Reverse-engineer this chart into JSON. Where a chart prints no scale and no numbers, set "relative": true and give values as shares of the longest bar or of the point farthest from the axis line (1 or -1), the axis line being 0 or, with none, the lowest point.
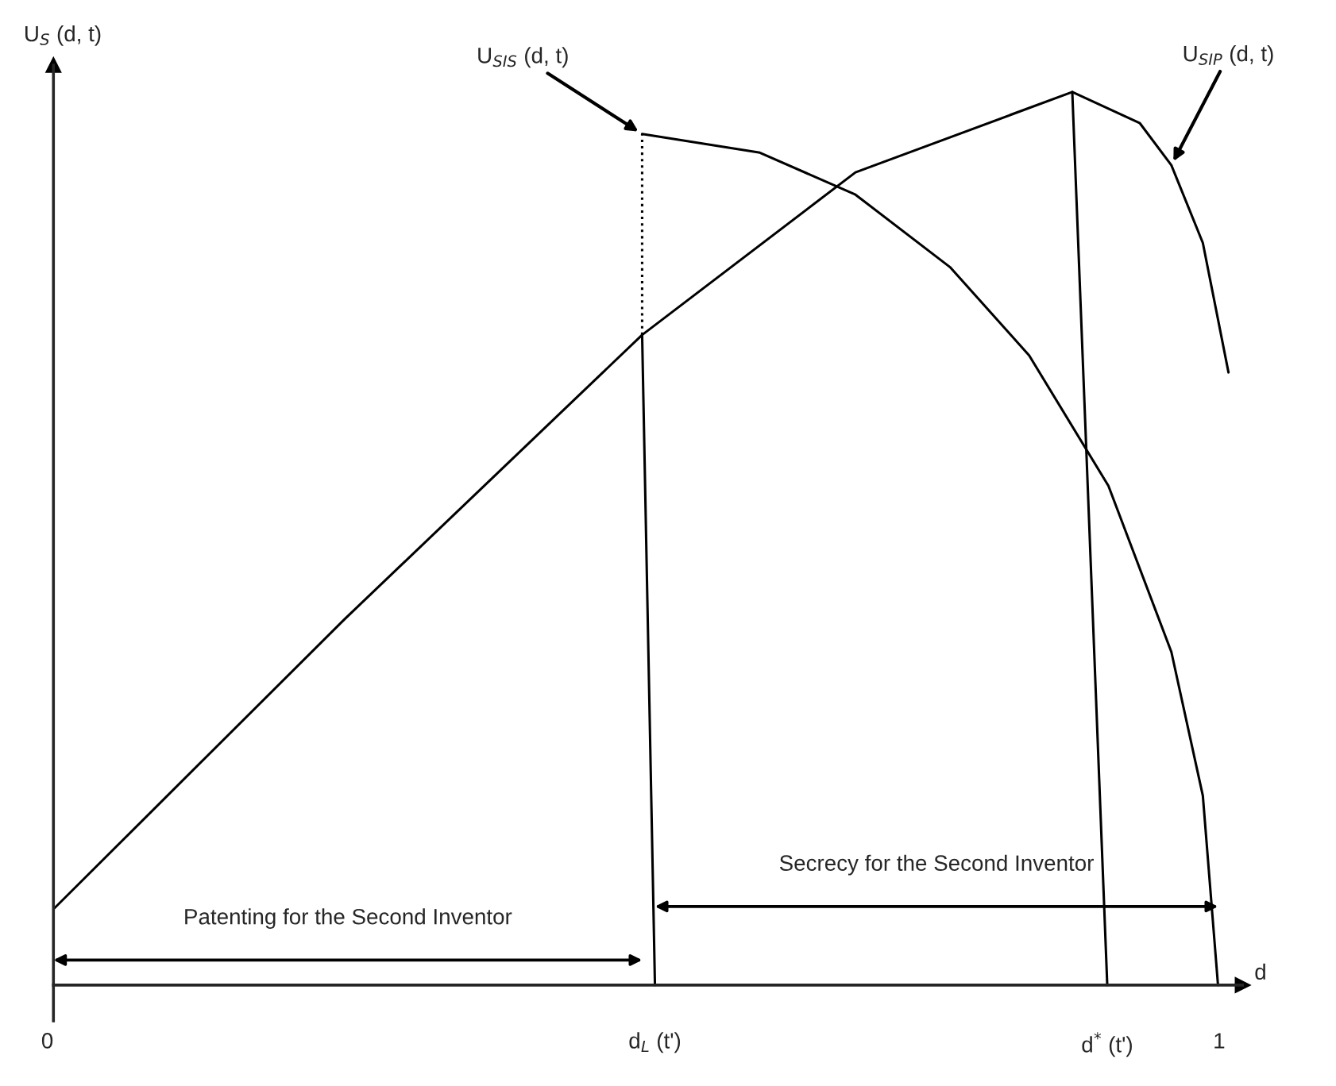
{
  "chart_data": {
    "type": "line",
    "relative": true,
    "xlabel": "d",
    "ylabel": "U$_{S}$ (d, t)",
    "xlim": [
      0,
      1.02
    ],
    "xticks": [
      0,
      {
        "value": 0.516,
        "label": "d$_{L}$ (t')"
      },
      {
        "value": 0.904,
        "label": "d$^{*}$ (t')"
      },
      1
    ],
    "series": [
      {
        "name": "U$_{SIP}$ (d, t)",
        "color": "#000000",
        "line_style": "solid",
        "x": [
          0,
          0.25,
          0.505,
          0.688,
          0.874,
          0.932,
          0.959,
          0.986,
          1.008
        ],
        "values": [
          0.085,
          0.41,
          0.728,
          0.91,
          1.0,
          0.965,
          0.918,
          0.831,
          0.686
        ]
      },
      {
        "name": "U$_{SIS}$ (d, t)",
        "color": "#000000",
        "line_style": "solid",
        "x": [
          0.505,
          0.606,
          0.688,
          0.769,
          0.837,
          0.905,
          0.959,
          0.986,
          0.999
        ],
        "values": [
          0.953,
          0.932,
          0.885,
          0.804,
          0.705,
          0.559,
          0.373,
          0.212,
          0
        ]
      },
      {
        "color": "#000000",
        "line_style": "dotted",
        "x": [
          0.505,
          0.505
        ],
        "values": [
          0.728,
          0.953
        ]
      },
      {
        "color": "#000000",
        "line_style": "solid",
        "x": [
          0.505,
          0.516
        ],
        "values": [
          0.728,
          0
        ]
      },
      {
        "color": "#000000",
        "line_style": "solid",
        "x": [
          0.874,
          0.904
        ],
        "values": [
          1.0,
          0
        ]
      }
    ],
    "annotations": [
      "Patenting for the Second Inventor",
      "Secrecy for the Second Inventor"
    ],
    "grid": false,
    "legend": false
  }
}
